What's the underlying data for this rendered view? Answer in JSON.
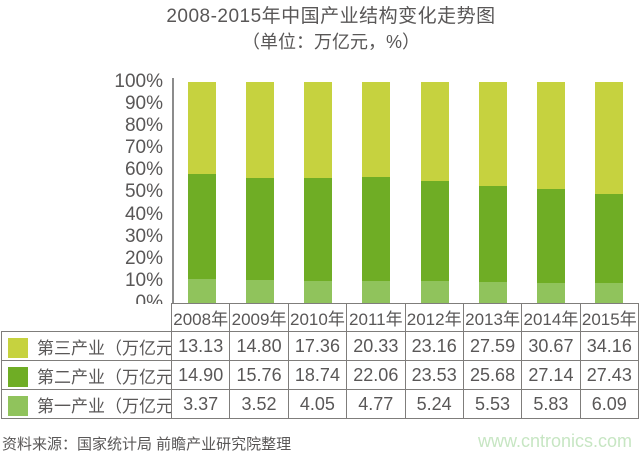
{
  "title": "2008-2015年中国产业结构变化走势图",
  "subtitle": "（单位：万亿元，%）",
  "chart_data": {
    "type": "bar",
    "stacked": true,
    "normalized_to_percent": true,
    "title": "2008-2015年中国产业结构变化走势图",
    "subtitle": "（单位：万亿元，%）",
    "categories": [
      "2008年",
      "2009年",
      "2010年",
      "2011年",
      "2012年",
      "2013年",
      "2014年",
      "2015年"
    ],
    "series": [
      {
        "name": "第三产业（万亿元）",
        "color": "#c6d23f",
        "values": [
          13.13,
          14.8,
          17.36,
          20.33,
          23.16,
          27.59,
          30.67,
          34.16
        ]
      },
      {
        "name": "第二产业（万亿元）",
        "color": "#6fad25",
        "values": [
          14.9,
          15.76,
          18.74,
          22.06,
          23.53,
          25.68,
          27.14,
          27.43
        ]
      },
      {
        "name": "第一产业（万亿元）",
        "color": "#90c35c",
        "values": [
          3.37,
          3.52,
          4.05,
          4.77,
          5.24,
          5.53,
          5.83,
          6.09
        ]
      }
    ],
    "stack_order_bottom_to_top": [
      "第一产业（万亿元）",
      "第二产业（万亿元）",
      "第三产业（万亿元）"
    ],
    "y_ticks": [
      "100%",
      "90%",
      "80%",
      "70%",
      "60%",
      "50%",
      "40%",
      "30%",
      "20%",
      "10%",
      "0%"
    ],
    "ylim": [
      0,
      100
    ],
    "grid": false,
    "legend_position": "table-left",
    "value_decimals": 2
  },
  "footer": {
    "source": "资料来源：国家统计局 前瞻产业研究院整理",
    "watermark": "www.cntronics.com"
  }
}
